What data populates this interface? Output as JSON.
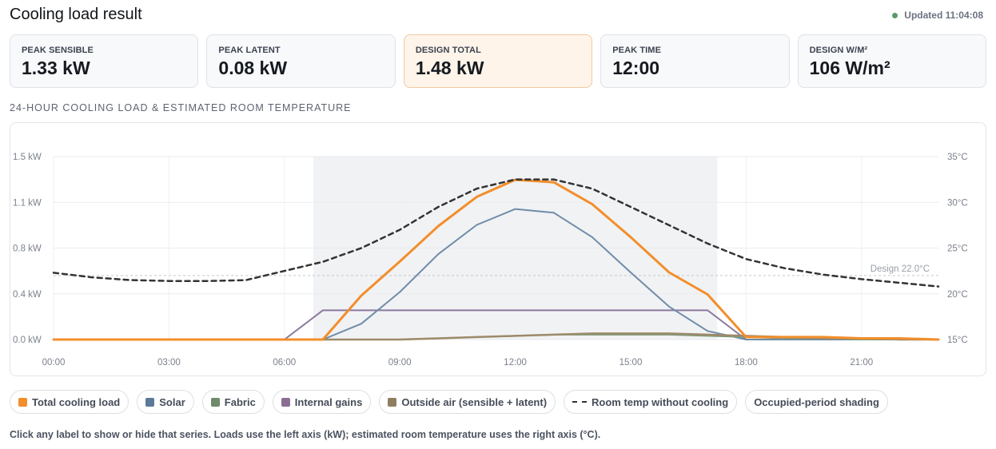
{
  "header": {
    "title": "Cooling load result",
    "updated": "Updated 11:04:08",
    "status_color": "#5a9a6a"
  },
  "cards": [
    {
      "label": "PEAK SENSIBLE",
      "value": "1.33 kW"
    },
    {
      "label": "PEAK LATENT",
      "value": "0.08 kW"
    },
    {
      "label": "DESIGN TOTAL",
      "value": "1.48 kW"
    },
    {
      "label": "PEAK TIME",
      "value": "12:00"
    },
    {
      "label": "DESIGN W/M²",
      "value": "106 W/m²"
    }
  ],
  "section_title": "24-HOUR COOLING LOAD & ESTIMATED ROOM TEMPERATURE",
  "legend": [
    {
      "label": "Total cooling load",
      "color": "#f28e2b",
      "kind": "swatch"
    },
    {
      "label": "Solar",
      "color": "#5b7a98",
      "kind": "swatch"
    },
    {
      "label": "Fabric",
      "color": "#6e8a6a",
      "kind": "swatch"
    },
    {
      "label": "Internal gains",
      "color": "#8b6e93",
      "kind": "swatch"
    },
    {
      "label": "Outside air (sensible + latent)",
      "color": "#8e7d5f",
      "kind": "swatch"
    },
    {
      "label": "Room temp without cooling",
      "color": "#333333",
      "kind": "dash"
    },
    {
      "label": "Occupied-period shading",
      "color": "",
      "kind": "none"
    }
  ],
  "footnote": "Click any label to show or hide that series. Loads use the left axis (kW); estimated room temperature uses the right axis (°C).",
  "chart_data": {
    "type": "line",
    "x": [
      0,
      1,
      2,
      3,
      4,
      5,
      6,
      7,
      8,
      9,
      10,
      11,
      12,
      13,
      14,
      15,
      16,
      17,
      18,
      19,
      20,
      21,
      22,
      23
    ],
    "x_ticks": [
      0,
      3,
      6,
      9,
      12,
      15,
      18,
      21
    ],
    "x_tick_labels": [
      "00:00",
      "03:00",
      "06:00",
      "09:00",
      "12:00",
      "15:00",
      "18:00",
      "21:00"
    ],
    "y_left": {
      "ticks": [
        0.0,
        0.375,
        0.75,
        1.125,
        1.5
      ],
      "tick_labels": [
        "0.0 kW",
        "0.4 kW",
        "0.8 kW",
        "1.1 kW",
        "1.5 kW"
      ],
      "range": [
        0,
        1.5
      ]
    },
    "y_right": {
      "ticks": [
        15,
        20,
        25,
        30,
        35
      ],
      "tick_labels": [
        "15°C",
        "20°C",
        "25°C",
        "30°C",
        "35°C"
      ],
      "range": [
        15,
        35
      ]
    },
    "occupied_period": [
      6.75,
      17.25
    ],
    "design_line": {
      "value": 22.0,
      "label": "Design 22.0°C"
    },
    "grid": true,
    "series": [
      {
        "name": "Total cooling load",
        "axis": "left",
        "color": "#f28e2b",
        "width": 3,
        "values": [
          0,
          0,
          0,
          0,
          0,
          0,
          0,
          0,
          0.36,
          0.64,
          0.93,
          1.17,
          1.31,
          1.29,
          1.11,
          0.84,
          0.55,
          0.37,
          0.02,
          0.02,
          0.02,
          0.01,
          0.01,
          0
        ]
      },
      {
        "name": "Solar",
        "axis": "left",
        "color": "#6f8ca8",
        "width": 2,
        "values": [
          0,
          0,
          0,
          0,
          0,
          0,
          0,
          0,
          0.13,
          0.39,
          0.7,
          0.94,
          1.07,
          1.04,
          0.84,
          0.55,
          0.27,
          0.07,
          0,
          0,
          0,
          0,
          0,
          0
        ]
      },
      {
        "name": "Internal gains",
        "axis": "left",
        "color": "#8b7aa0",
        "width": 2,
        "values": [
          0,
          0,
          0,
          0,
          0,
          0,
          0,
          0.24,
          0.24,
          0.24,
          0.24,
          0.24,
          0.24,
          0.24,
          0.24,
          0.24,
          0.24,
          0.24,
          0,
          0,
          0,
          0,
          0,
          0
        ]
      },
      {
        "name": "Fabric",
        "axis": "left",
        "color": "#7e9a7a",
        "width": 2,
        "values": [
          0,
          0,
          0,
          0,
          0,
          0,
          0,
          0,
          0,
          0,
          0.01,
          0.02,
          0.03,
          0.04,
          0.04,
          0.04,
          0.04,
          0.03,
          0.02,
          0.01,
          0.01,
          0,
          0,
          0
        ]
      },
      {
        "name": "Outside air (sensible + latent)",
        "axis": "left",
        "color": "#9c8a6a",
        "width": 2.5,
        "values": [
          0,
          0,
          0,
          0,
          0,
          0,
          0,
          0,
          0,
          0,
          0.01,
          0.02,
          0.03,
          0.04,
          0.05,
          0.05,
          0.05,
          0.04,
          0.03,
          0.02,
          0.01,
          0.01,
          0,
          0
        ]
      },
      {
        "name": "Room temp without cooling",
        "axis": "right",
        "color": "#333333",
        "width": 2.5,
        "dashed": true,
        "values": [
          22.3,
          21.8,
          21.5,
          21.4,
          21.4,
          21.5,
          22.5,
          23.5,
          25.0,
          27.0,
          29.5,
          31.5,
          32.5,
          32.5,
          31.5,
          29.5,
          27.5,
          25.5,
          23.8,
          22.8,
          22.1,
          21.6,
          21.2,
          20.8
        ]
      }
    ]
  }
}
